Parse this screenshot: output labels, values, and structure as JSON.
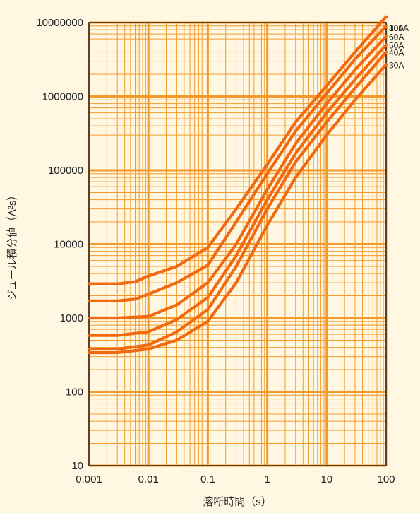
{
  "chart_data": {
    "type": "line",
    "title": "",
    "xlabel": "溶断時間（s）",
    "ylabel": "ジュール積分値（A²s）",
    "x_scale": "log",
    "y_scale": "log",
    "xlim": [
      0.001,
      100
    ],
    "ylim": [
      10,
      10000000
    ],
    "x_ticks": [
      0.001,
      0.01,
      0.1,
      1,
      10,
      100
    ],
    "x_tick_labels": [
      "0.001",
      "0.01",
      "0.1",
      "1",
      "10",
      "100"
    ],
    "y_ticks": [
      10,
      100,
      1000,
      10000,
      100000,
      1000000,
      10000000
    ],
    "y_tick_labels": [
      "10",
      "100",
      "1000",
      "10000",
      "100000",
      "1000000",
      "10000000"
    ],
    "grid": true,
    "colors": {
      "grid": "#f39a2c",
      "curve": "#f26a10",
      "plot_background": "#fff7e2"
    },
    "series": [
      {
        "name": "100A",
        "points": [
          [
            0.001,
            2900
          ],
          [
            0.003,
            2900
          ],
          [
            0.006,
            3100
          ],
          [
            0.01,
            3700
          ],
          [
            0.03,
            5000
          ],
          [
            0.1,
            9000
          ],
          [
            0.3,
            30000
          ],
          [
            1,
            120000
          ],
          [
            3,
            450000
          ],
          [
            10,
            1400000
          ],
          [
            30,
            4000000
          ],
          [
            100,
            12000000
          ]
        ]
      },
      {
        "name": "80A",
        "points": [
          [
            0.001,
            1700
          ],
          [
            0.003,
            1700
          ],
          [
            0.006,
            1800
          ],
          [
            0.01,
            2100
          ],
          [
            0.03,
            3000
          ],
          [
            0.1,
            5200
          ],
          [
            0.3,
            20000
          ],
          [
            1,
            90000
          ],
          [
            3,
            340000
          ],
          [
            10,
            1100000
          ],
          [
            30,
            3200000
          ],
          [
            100,
            9000000
          ]
        ]
      },
      {
        "name": "60A",
        "points": [
          [
            0.001,
            1000
          ],
          [
            0.003,
            1000
          ],
          [
            0.01,
            1050
          ],
          [
            0.03,
            1500
          ],
          [
            0.1,
            3000
          ],
          [
            0.3,
            10000
          ],
          [
            1,
            55000
          ],
          [
            3,
            230000
          ],
          [
            10,
            800000
          ],
          [
            30,
            2300000
          ],
          [
            100,
            6500000
          ]
        ]
      },
      {
        "name": "50A",
        "points": [
          [
            0.001,
            580
          ],
          [
            0.003,
            580
          ],
          [
            0.01,
            650
          ],
          [
            0.03,
            950
          ],
          [
            0.1,
            1900
          ],
          [
            0.3,
            7000
          ],
          [
            1,
            40000
          ],
          [
            3,
            170000
          ],
          [
            10,
            600000
          ],
          [
            30,
            1700000
          ],
          [
            100,
            5000000
          ]
        ]
      },
      {
        "name": "40A",
        "points": [
          [
            0.001,
            380
          ],
          [
            0.003,
            380
          ],
          [
            0.01,
            430
          ],
          [
            0.03,
            650
          ],
          [
            0.1,
            1300
          ],
          [
            0.3,
            5000
          ],
          [
            1,
            30000
          ],
          [
            3,
            130000
          ],
          [
            10,
            450000
          ],
          [
            30,
            1300000
          ],
          [
            100,
            4000000
          ]
        ]
      },
      {
        "name": "30A",
        "points": [
          [
            0.001,
            340
          ],
          [
            0.003,
            340
          ],
          [
            0.01,
            380
          ],
          [
            0.03,
            500
          ],
          [
            0.1,
            900
          ],
          [
            0.3,
            3000
          ],
          [
            1,
            18000
          ],
          [
            3,
            80000
          ],
          [
            10,
            300000
          ],
          [
            30,
            900000
          ],
          [
            100,
            2700000
          ]
        ]
      }
    ]
  }
}
